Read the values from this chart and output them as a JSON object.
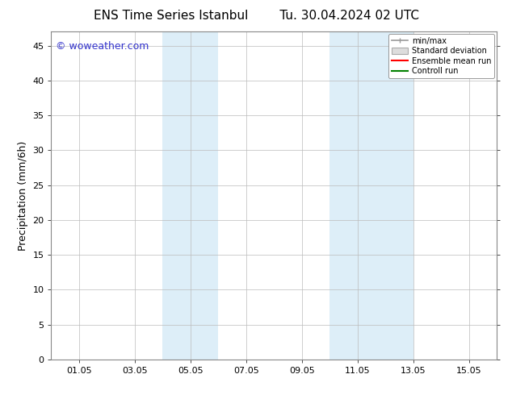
{
  "title": "ENS Time Series Istanbul",
  "subtitle": "Tu. 30.04.2024 02 UTC",
  "ylabel": "Precipitation (mm/6h)",
  "ylim": [
    0,
    47
  ],
  "yticks": [
    0,
    5,
    10,
    15,
    20,
    25,
    30,
    35,
    40,
    45
  ],
  "xlim": [
    0,
    16
  ],
  "xtick_labels": [
    "01.05",
    "03.05",
    "05.05",
    "07.05",
    "09.05",
    "11.05",
    "13.05",
    "15.05"
  ],
  "xtick_positions": [
    1,
    3,
    5,
    7,
    9,
    11,
    13,
    15
  ],
  "shaded_regions": [
    {
      "x_start": 4.0,
      "x_end": 6.0,
      "color": "#ddeef8",
      "alpha": 1.0
    },
    {
      "x_start": 10.0,
      "x_end": 13.0,
      "color": "#ddeef8",
      "alpha": 1.0
    }
  ],
  "watermark": "© woweather.com",
  "watermark_color": "#3333cc",
  "legend_items": [
    {
      "label": "min/max",
      "color": "#999999",
      "linestyle": "-"
    },
    {
      "label": "Standard deviation",
      "color": "#cccccc",
      "linestyle": "-"
    },
    {
      "label": "Ensemble mean run",
      "color": "#ff0000",
      "linestyle": "-"
    },
    {
      "label": "Controll run",
      "color": "#008000",
      "linestyle": "-"
    }
  ],
  "background_color": "#ffffff",
  "grid_color": "#bbbbbb",
  "title_fontsize": 11,
  "label_fontsize": 9,
  "tick_fontsize": 8,
  "legend_fontsize": 7
}
